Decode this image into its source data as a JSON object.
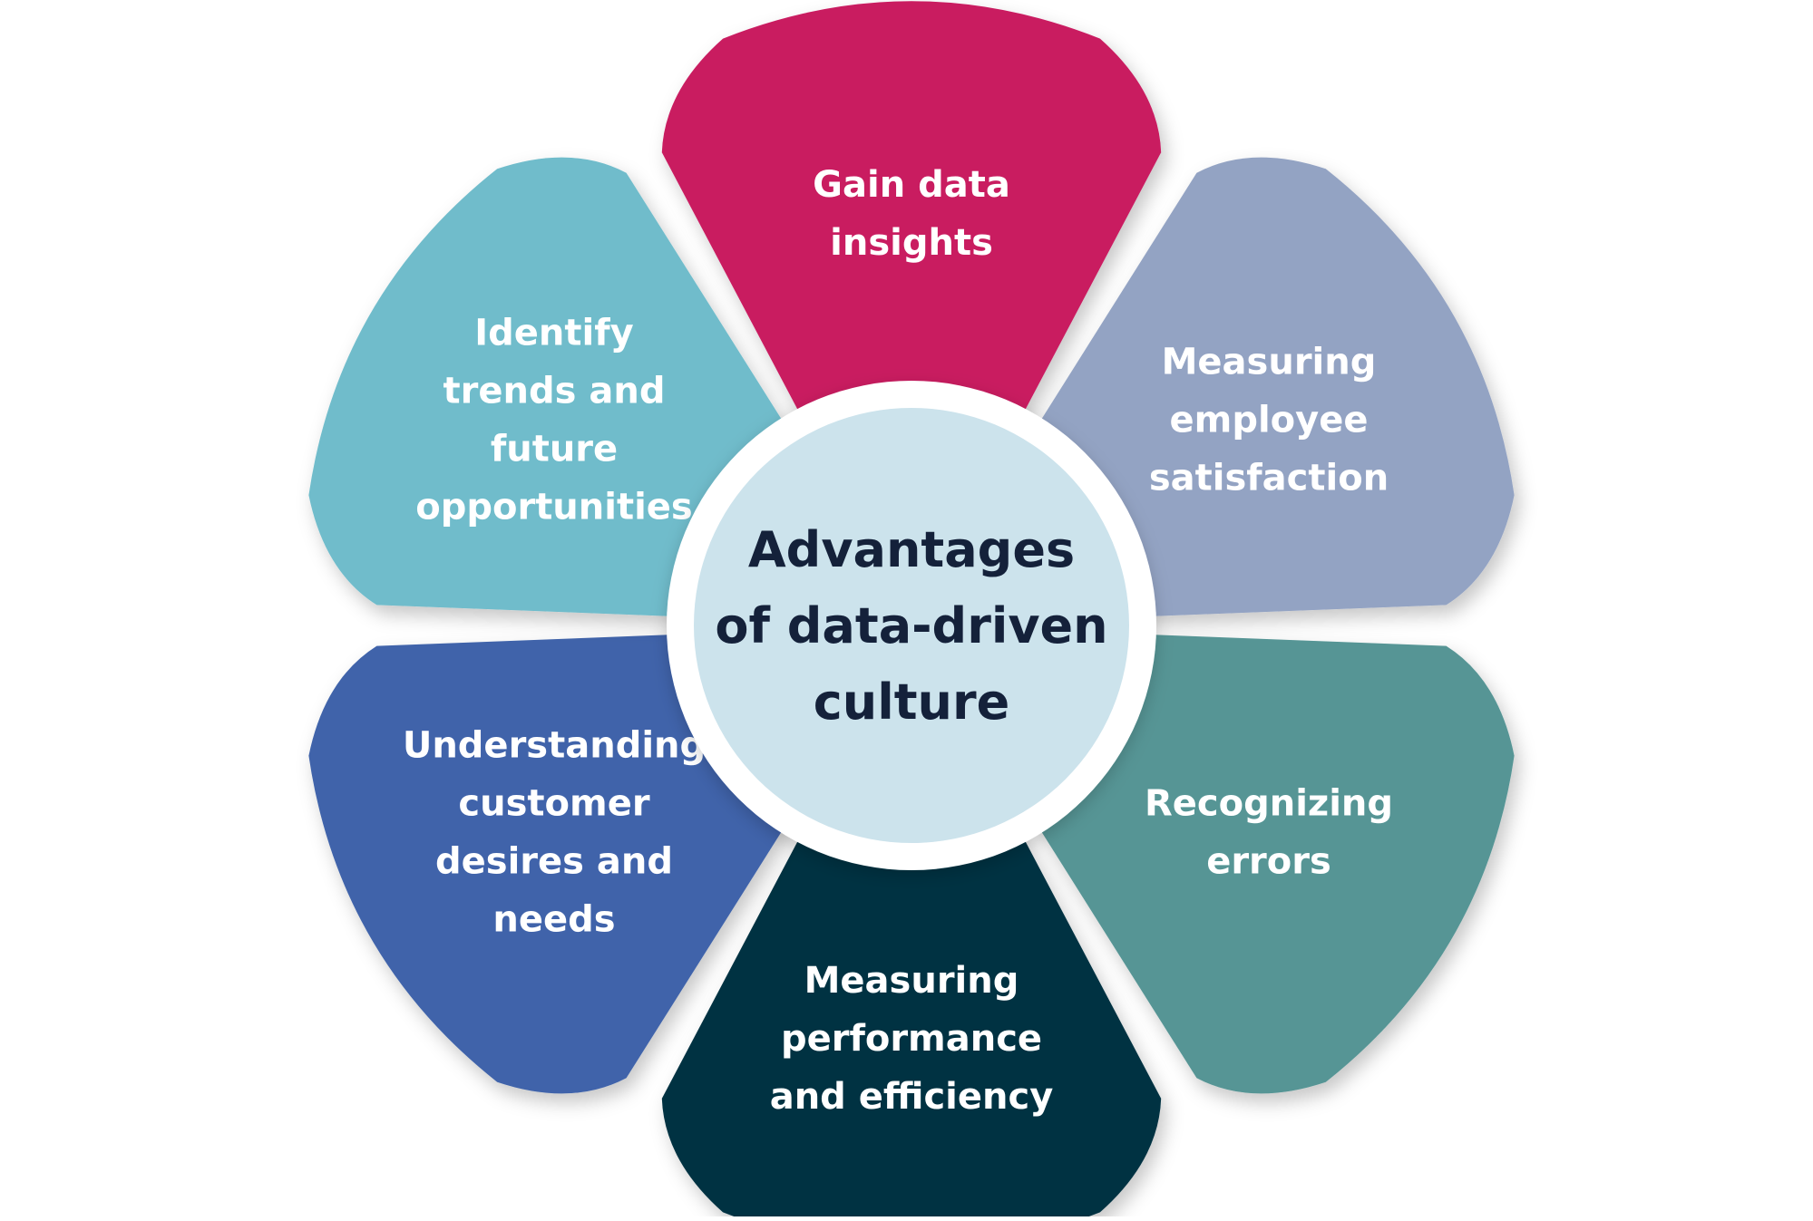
{
  "center": {
    "lines": [
      "Advantages",
      "of data-driven",
      "culture"
    ],
    "fill": "#cce3ec"
  },
  "segments": [
    {
      "id": "gain-data-insights",
      "lines": [
        "Gain data",
        "insights"
      ],
      "color": "#c91a60"
    },
    {
      "id": "measuring-employee-satisfaction",
      "lines": [
        "Measuring",
        "employee",
        "satisfaction"
      ],
      "color": "#93a3c3"
    },
    {
      "id": "recognizing-errors",
      "lines": [
        "Recognizing",
        "errors"
      ],
      "color": "#579595"
    },
    {
      "id": "measuring-performance-and-efficiency",
      "lines": [
        "Measuring",
        "performance",
        "and efficiency"
      ],
      "color": "#063342"
    },
    {
      "id": "understanding-customer-desires-and-needs",
      "lines": [
        "Understanding",
        "customer",
        "desires and",
        "needs"
      ],
      "color": "#3f64aa"
    },
    {
      "id": "identify-trends-and-future-opportunities",
      "lines": [
        "Identify",
        "trends and",
        "future",
        "opportunities"
      ],
      "color": "#6fbccb"
    }
  ]
}
